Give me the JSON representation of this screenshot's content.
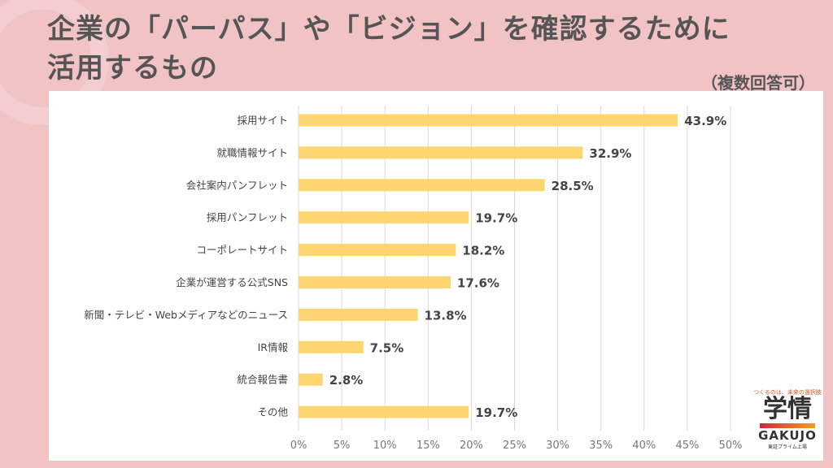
{
  "header": {
    "title_line1": "企業の「パーパス」や「ビジョン」を確認するために",
    "title_line2": "活用するもの",
    "note": "（複数回答可）"
  },
  "logo": {
    "tagline": "つくるのは、未来の選択肢",
    "kanji": "学情",
    "name": "GAKUJO",
    "sub": "東証プライム上場"
  },
  "chart_data": {
    "type": "bar",
    "orientation": "horizontal",
    "categories": [
      "採用サイト",
      "就職情報サイト",
      "会社案内パンフレット",
      "採用パンフレット",
      "コーポレートサイト",
      "企業が運営する公式SNS",
      "新聞・テレビ・Webメディアなどのニュース",
      "IR情報",
      "統合報告書",
      "その他"
    ],
    "values": [
      43.9,
      32.9,
      28.5,
      19.7,
      18.2,
      17.6,
      13.8,
      7.5,
      2.8,
      19.7
    ],
    "data_labels": [
      "43.9%",
      "32.9%",
      "28.5%",
      "19.7%",
      "18.2%",
      "17.6%",
      "13.8%",
      "7.5%",
      "2.8%",
      "19.7%"
    ],
    "xlim": [
      0,
      50
    ],
    "x_ticks": [
      "0%",
      "5%",
      "10%",
      "15%",
      "20%",
      "25%",
      "30%",
      "35%",
      "40%",
      "45%",
      "50%"
    ],
    "grid": true,
    "bar_color": "#fdd571"
  }
}
